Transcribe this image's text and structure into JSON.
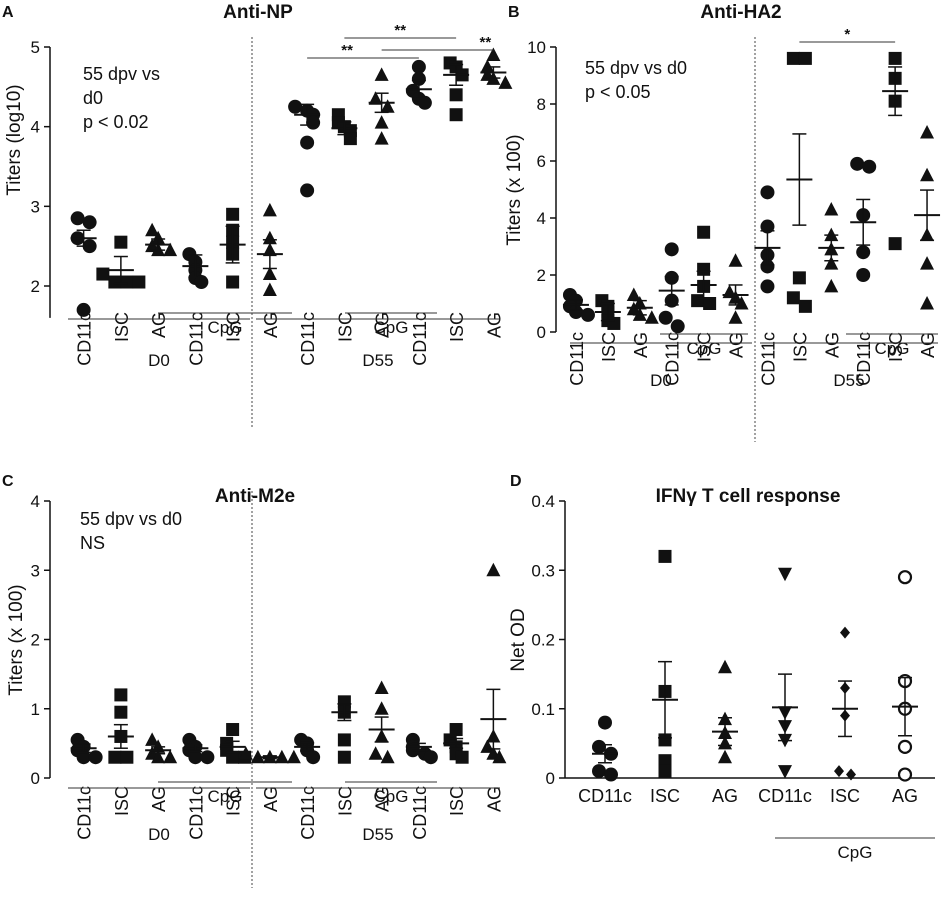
{
  "panels": [
    {
      "letter": "A",
      "title": "Anti-NP",
      "ylabel": "Titers (log10)",
      "yticks": [
        "2",
        "3",
        "4",
        "5"
      ],
      "annotation": [
        "55 dpv vs",
        "d0",
        "p < 0.02"
      ],
      "categories": [
        "CD11c",
        "ISC",
        "AG",
        "CD11c",
        "ISC",
        "AG",
        "CD11c",
        "ISC",
        "AG",
        "CD11c",
        "ISC",
        "AG"
      ],
      "cpg_label": "CpG",
      "day_labels": [
        "D0",
        "D55"
      ],
      "significance": [
        "**",
        "**",
        "**"
      ]
    },
    {
      "letter": "B",
      "title": "Anti-HA2",
      "ylabel": "Titers (x 100)",
      "yticks": [
        "0",
        "2",
        "4",
        "6",
        "8",
        "10"
      ],
      "annotation": [
        "55 dpv vs d0",
        "p < 0.05"
      ],
      "categories": [
        "CD11c",
        "ISC",
        "AG",
        "CD11c",
        "ISC",
        "AG",
        "CD11c",
        "ISC",
        "AG",
        "CD11c",
        "ISC",
        "AG"
      ],
      "cpg_label": "CpG",
      "day_labels": [
        "D0",
        "D55"
      ],
      "significance": [
        "*"
      ]
    },
    {
      "letter": "C",
      "title": "Anti-M2e",
      "ylabel": "Titers (x 100)",
      "yticks": [
        "0",
        "1",
        "2",
        "3",
        "4"
      ],
      "annotation": [
        "55 dpv vs d0",
        "NS"
      ],
      "categories": [
        "CD11c",
        "ISC",
        "AG",
        "CD11c",
        "ISC",
        "AG",
        "CD11c",
        "ISC",
        "AG",
        "CD11c",
        "ISC",
        "AG"
      ],
      "cpg_label": "CpG",
      "day_labels": [
        "D0",
        "D55"
      ],
      "significance": []
    },
    {
      "letter": "D",
      "title": "IFNγ T cell response",
      "ylabel": "Net OD",
      "yticks": [
        "0",
        "0.1",
        "0.2",
        "0.3",
        "0.4"
      ],
      "annotation": [],
      "categories": [
        "CD11c",
        "ISC",
        "AG",
        "CD11c",
        "ISC",
        "AG"
      ],
      "cpg_label": "CpG",
      "day_labels": [],
      "significance": []
    }
  ],
  "chart_data": [
    {
      "type": "scatter",
      "title": "Anti-NP",
      "ylabel": "Titers (log10)",
      "ylim": [
        1.5,
        5
      ],
      "categories": [
        "CD11c",
        "ISC",
        "AG",
        "CpG CD11c",
        "CpG ISC",
        "CpG AG",
        "CD11c",
        "ISC",
        "AG",
        "CpG CD11c",
        "CpG ISC",
        "CpG AG"
      ],
      "groups": [
        "D0",
        "D0",
        "D0",
        "D0",
        "D0",
        "D0",
        "D55",
        "D55",
        "D55",
        "D55",
        "D55",
        "D55"
      ],
      "markers": [
        "circle",
        "square",
        "triangle",
        "circle",
        "square",
        "triangle",
        "circle",
        "square",
        "triangle",
        "circle",
        "square",
        "triangle"
      ],
      "points": [
        [
          2.85,
          2.8,
          2.6,
          2.5,
          1.7
        ],
        [
          2.55,
          2.15,
          2.05,
          2.05,
          2.05
        ],
        [
          2.7,
          2.6,
          2.5,
          2.45,
          2.45
        ],
        [
          2.4,
          2.3,
          2.2,
          2.1,
          2.05
        ],
        [
          2.9,
          2.7,
          2.55,
          2.4,
          2.05
        ],
        [
          2.95,
          2.6,
          2.45,
          2.15,
          1.95
        ],
        [
          4.25,
          4.2,
          4.15,
          4.05,
          3.8,
          3.2
        ],
        [
          4.15,
          4.05,
          4.0,
          3.95,
          3.85
        ],
        [
          4.65,
          4.35,
          4.25,
          4.05,
          3.85
        ],
        [
          4.75,
          4.6,
          4.45,
          4.35,
          4.3
        ],
        [
          4.8,
          4.75,
          4.65,
          4.4,
          4.15
        ],
        [
          4.9,
          4.75,
          4.65,
          4.6,
          4.55
        ]
      ],
      "means": [
        2.6,
        2.2,
        2.52,
        2.25,
        2.52,
        2.4,
        4.15,
        3.98,
        4.3,
        4.47,
        4.65,
        4.68
      ],
      "sems": [
        0.1,
        0.17,
        0.07,
        0.14,
        0.23,
        0.18,
        0.13,
        0.08,
        0.12,
        0.11,
        0.13,
        0.07
      ],
      "significance": [
        {
          "from": 7,
          "to": 10,
          "label": "**"
        },
        {
          "from": 6,
          "to": 9,
          "label": "**"
        },
        {
          "from": 8,
          "to": 11,
          "label": "**"
        }
      ],
      "vertical_divider_after": 5
    },
    {
      "type": "scatter",
      "title": "Anti-HA2",
      "ylabel": "Titers (x 100)",
      "ylim": [
        0,
        10
      ],
      "categories": [
        "CD11c",
        "ISC",
        "AG",
        "CpG CD11c",
        "CpG ISC",
        "CpG AG",
        "CD11c",
        "ISC",
        "AG",
        "CpG CD11c",
        "CpG ISC",
        "CpG AG"
      ],
      "groups": [
        "D0",
        "D0",
        "D0",
        "D0",
        "D0",
        "D0",
        "D55",
        "D55",
        "D55",
        "D55",
        "D55",
        "D55"
      ],
      "markers": [
        "circle",
        "square",
        "triangle",
        "circle",
        "square",
        "triangle",
        "circle",
        "square",
        "triangle",
        "circle",
        "square",
        "triangle"
      ],
      "points": [
        [
          1.3,
          1.1,
          0.9,
          0.7,
          0.6
        ],
        [
          1.1,
          0.9,
          0.7,
          0.4,
          0.3
        ],
        [
          1.3,
          1.0,
          0.8,
          0.6,
          0.5
        ],
        [
          2.9,
          1.9,
          1.1,
          0.5,
          0.2
        ],
        [
          3.5,
          2.2,
          1.6,
          1.1,
          1.0
        ],
        [
          2.5,
          1.4,
          1.2,
          1.0,
          0.5
        ],
        [
          4.9,
          3.7,
          2.7,
          2.3,
          1.6
        ],
        [
          9.6,
          9.6,
          1.9,
          1.2,
          0.9
        ],
        [
          4.3,
          3.4,
          2.9,
          2.4,
          1.6
        ],
        [
          5.9,
          5.8,
          4.1,
          2.8,
          2.0
        ],
        [
          9.6,
          8.9,
          8.1,
          3.1
        ],
        [
          7.0,
          5.5,
          3.4,
          2.4,
          1.0
        ]
      ],
      "means": [
        0.95,
        0.7,
        0.85,
        1.45,
        1.65,
        1.3,
        2.95,
        5.35,
        2.95,
        3.85,
        8.45,
        4.1
      ],
      "sems": [
        0.18,
        0.3,
        0.25,
        0.5,
        0.48,
        0.35,
        0.6,
        1.6,
        0.45,
        0.8,
        0.85,
        0.88
      ],
      "significance": [
        {
          "from": 7,
          "to": 10,
          "label": "*"
        }
      ],
      "vertical_divider_after": 5
    },
    {
      "type": "scatter",
      "title": "Anti-M2e",
      "ylabel": "Titers (x 100)",
      "ylim": [
        0,
        4
      ],
      "categories": [
        "CD11c",
        "ISC",
        "AG",
        "CpG CD11c",
        "CpG ISC",
        "CpG AG",
        "CD11c",
        "ISC",
        "AG",
        "CpG CD11c",
        "CpG ISC",
        "CpG AG"
      ],
      "groups": [
        "D0",
        "D0",
        "D0",
        "D0",
        "D0",
        "D0",
        "D55",
        "D55",
        "D55",
        "D55",
        "D55",
        "D55"
      ],
      "markers": [
        "circle",
        "square",
        "triangle",
        "circle",
        "square",
        "triangle",
        "circle",
        "square",
        "triangle",
        "circle",
        "square",
        "triangle"
      ],
      "points": [
        [
          0.55,
          0.45,
          0.4,
          0.3,
          0.3
        ],
        [
          1.2,
          0.95,
          0.6,
          0.3,
          0.3
        ],
        [
          0.55,
          0.45,
          0.35,
          0.3,
          0.3
        ],
        [
          0.55,
          0.45,
          0.4,
          0.3,
          0.3
        ],
        [
          0.7,
          0.5,
          0.4,
          0.3,
          0.3
        ],
        [
          0.35,
          0.3,
          0.3,
          0.3,
          0.3
        ],
        [
          0.55,
          0.5,
          0.4,
          0.3
        ],
        [
          1.1,
          0.95,
          0.55,
          0.3
        ],
        [
          1.3,
          1.0,
          0.6,
          0.35,
          0.3
        ],
        [
          0.55,
          0.45,
          0.4,
          0.35,
          0.3
        ],
        [
          0.7,
          0.55,
          0.45,
          0.35,
          0.3
        ],
        [
          3.0,
          0.6,
          0.45,
          0.35,
          0.3
        ]
      ],
      "means": [
        0.43,
        0.6,
        0.4,
        0.43,
        0.45,
        0.3,
        0.45,
        0.95,
        0.7,
        0.45,
        0.5,
        0.85
      ],
      "sems": [
        0.06,
        0.17,
        0.05,
        0.05,
        0.08,
        0.02,
        0.06,
        0.12,
        0.18,
        0.05,
        0.07,
        0.43
      ],
      "significance": [],
      "vertical_divider_after": 5
    },
    {
      "type": "scatter",
      "title": "IFNγ T cell response",
      "ylabel": "Net OD",
      "ylim": [
        0,
        0.4
      ],
      "categories": [
        "CD11c",
        "ISC",
        "AG",
        "CpG CD11c",
        "CpG ISC",
        "CpG AG"
      ],
      "markers": [
        "circle",
        "square",
        "triangle",
        "triangle-down",
        "diamond",
        "open-circle"
      ],
      "points": [
        [
          0.08,
          0.045,
          0.035,
          0.01,
          0.005
        ],
        [
          0.32,
          0.125,
          0.055,
          0.025,
          0.01
        ],
        [
          0.16,
          0.085,
          0.065,
          0.05,
          0.03
        ],
        [
          0.295,
          0.095,
          0.075,
          0.055,
          0.01
        ],
        [
          0.21,
          0.13,
          0.09,
          0.01,
          0.005
        ],
        [
          0.29,
          0.14,
          0.1,
          0.045,
          0.005
        ]
      ],
      "means": [
        0.035,
        0.113,
        0.067,
        0.102,
        0.1,
        0.103
      ],
      "sems": [
        0.013,
        0.055,
        0.02,
        0.048,
        0.04,
        0.042
      ],
      "significance": []
    }
  ]
}
